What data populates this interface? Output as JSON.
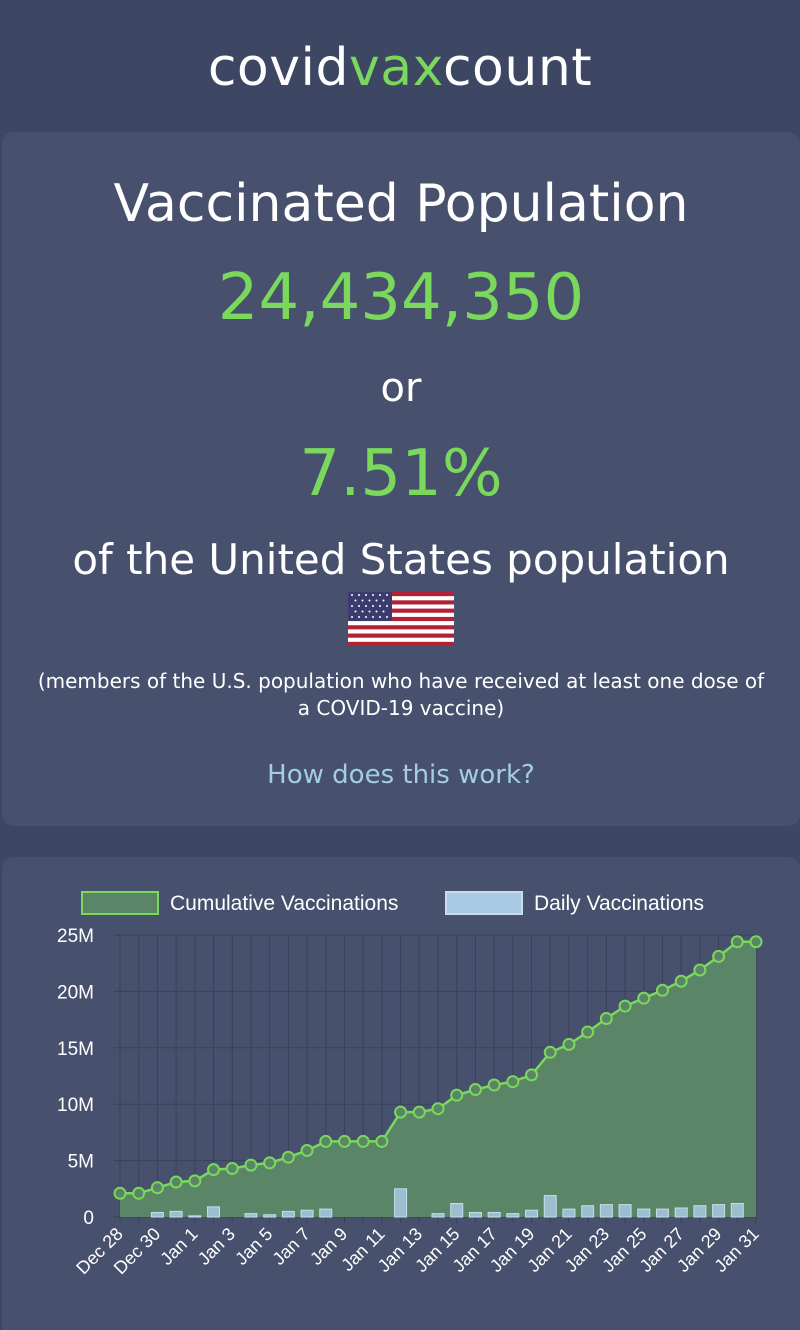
{
  "brand": {
    "part1": "covid",
    "part2": "vax",
    "part3": "count"
  },
  "hero": {
    "title": "Vaccinated Population",
    "count": "24,434,350",
    "connector": "or",
    "percent": "7.51%",
    "population_text": "of the United States population",
    "note": "(members of the U.S. population who have received at least one dose of a COVID-19 vaccine)",
    "link": "How does this work?"
  },
  "colors": {
    "background": "#3d4663",
    "card": "#47506d",
    "accent_green": "#7ad85c",
    "area_fill": "#5a8566",
    "bar_fill": "#a9c8e2",
    "link": "#a3cde6"
  },
  "chart_data": {
    "type": "line",
    "legend_position": "top",
    "grid": true,
    "x_ticks": [
      "Dec 28",
      "Dec 30",
      "Jan 1",
      "Jan 3",
      "Jan 5",
      "Jan 7",
      "Jan 9",
      "Jan 11",
      "Jan 13",
      "Jan 15",
      "Jan 17",
      "Jan 19",
      "Jan 21",
      "Jan 23",
      "Jan 25",
      "Jan 27",
      "Jan 29",
      "Jan 31"
    ],
    "y_ticks": [
      "0",
      "5M",
      "10M",
      "15M",
      "20M",
      "25M"
    ],
    "ylim": [
      0,
      25000000
    ],
    "x": [
      "Dec 28",
      "Dec 29",
      "Dec 30",
      "Dec 31",
      "Jan 1",
      "Jan 2",
      "Jan 3",
      "Jan 4",
      "Jan 5",
      "Jan 6",
      "Jan 7",
      "Jan 8",
      "Jan 9",
      "Jan 10",
      "Jan 11",
      "Jan 12",
      "Jan 13",
      "Jan 14",
      "Jan 15",
      "Jan 16",
      "Jan 17",
      "Jan 18",
      "Jan 19",
      "Jan 20",
      "Jan 21",
      "Jan 22",
      "Jan 23",
      "Jan 24",
      "Jan 25",
      "Jan 26",
      "Jan 27",
      "Jan 28",
      "Jan 29",
      "Jan 30",
      "Jan 31"
    ],
    "series": [
      {
        "name": "Cumulative Vaccinations",
        "kind": "area-line",
        "values": [
          2100000,
          2100000,
          2600000,
          3100000,
          3200000,
          4200000,
          4300000,
          4600000,
          4800000,
          5300000,
          5900000,
          6700000,
          6700000,
          6700000,
          6700000,
          9300000,
          9300000,
          9600000,
          10800000,
          11300000,
          11700000,
          12000000,
          12600000,
          14600000,
          15300000,
          16400000,
          17600000,
          18700000,
          19400000,
          20100000,
          20900000,
          21900000,
          23100000,
          24400000,
          24400000
        ]
      },
      {
        "name": "Daily Vaccinations",
        "kind": "bar",
        "values": [
          0,
          0,
          400000,
          500000,
          100000,
          900000,
          0,
          300000,
          200000,
          500000,
          600000,
          700000,
          0,
          0,
          0,
          2500000,
          0,
          300000,
          1200000,
          400000,
          400000,
          300000,
          600000,
          1900000,
          700000,
          1000000,
          1100000,
          1100000,
          700000,
          700000,
          800000,
          1000000,
          1100000,
          1200000,
          0
        ]
      }
    ]
  }
}
